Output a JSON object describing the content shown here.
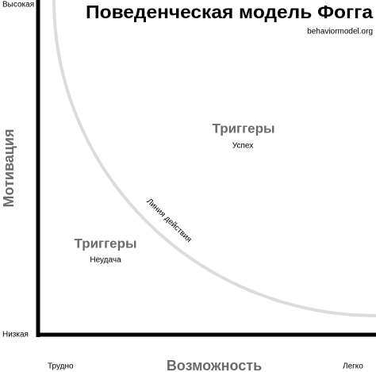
{
  "header": {
    "title": "Поведенческая модель Фогга",
    "source": "behaviormodel.org"
  },
  "axes": {
    "y": {
      "label": "Мотивация",
      "high": "Высокая",
      "low": "Низкая"
    },
    "x": {
      "label": "Возможность",
      "low": "Трудно",
      "high": "Легко"
    }
  },
  "curve": {
    "label": "Линия действия"
  },
  "regions": [
    {
      "title": "Триггеры",
      "caption": "Успех"
    },
    {
      "title": "Триггеры",
      "caption": "Неудача"
    }
  ]
}
